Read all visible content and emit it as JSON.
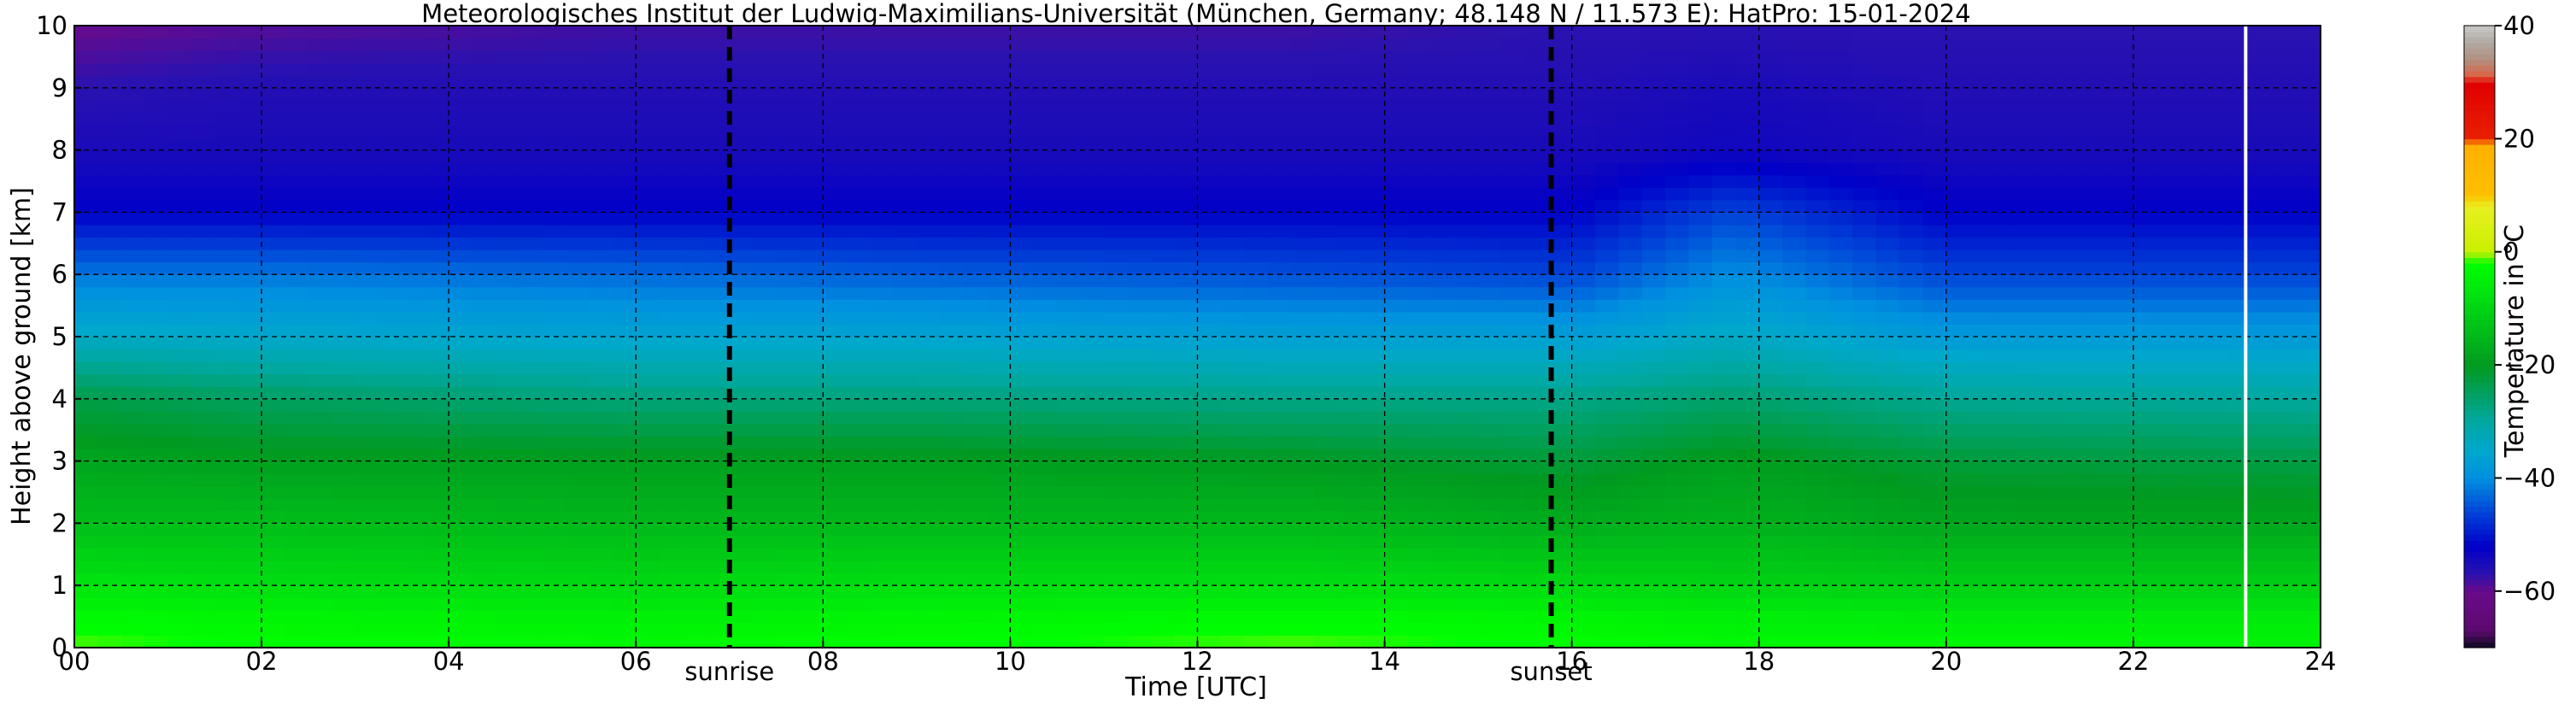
{
  "chart_data": {
    "type": "heatmap",
    "title": "Meteorologisches Institut der Ludwig-Maximilians-Universität (München, Germany; 48.148 N / 11.573 E):    HatPro: 15-01-2024",
    "xlabel": "Time [UTC]",
    "ylabel": "Height above ground [km]",
    "colorbar_label": "Temperature in °C",
    "xlim": [
      0,
      24
    ],
    "ylim": [
      0,
      10
    ],
    "x_ticks": [
      {
        "value": 0,
        "label": "00"
      },
      {
        "value": 2,
        "label": "02"
      },
      {
        "value": 4,
        "label": "04"
      },
      {
        "value": 6,
        "label": "06"
      },
      {
        "value": 8,
        "label": "08"
      },
      {
        "value": 10,
        "label": "10"
      },
      {
        "value": 12,
        "label": "12"
      },
      {
        "value": 14,
        "label": "14"
      },
      {
        "value": 16,
        "label": "16"
      },
      {
        "value": 18,
        "label": "18"
      },
      {
        "value": 20,
        "label": "20"
      },
      {
        "value": 22,
        "label": "22"
      },
      {
        "value": 24,
        "label": "24"
      }
    ],
    "y_ticks": [
      {
        "value": 0,
        "label": "0"
      },
      {
        "value": 1,
        "label": "1"
      },
      {
        "value": 2,
        "label": "2"
      },
      {
        "value": 3,
        "label": "3"
      },
      {
        "value": 4,
        "label": "4"
      },
      {
        "value": 5,
        "label": "5"
      },
      {
        "value": 6,
        "label": "6"
      },
      {
        "value": 7,
        "label": "7"
      },
      {
        "value": 8,
        "label": "8"
      },
      {
        "value": 9,
        "label": "9"
      },
      {
        "value": 10,
        "label": "10"
      }
    ],
    "grid": true,
    "events": [
      {
        "label": "sunrise",
        "time": 7.0
      },
      {
        "label": "sunset",
        "time": 15.78
      }
    ],
    "data_gap_time": 23.2,
    "colorbar": {
      "range": [
        -70,
        40
      ],
      "ticks": [
        {
          "value": 40,
          "label": "40"
        },
        {
          "value": 20,
          "label": "20"
        },
        {
          "value": 0,
          "label": "0"
        },
        {
          "value": -20,
          "label": "−20"
        },
        {
          "value": -40,
          "label": "−40"
        },
        {
          "value": -60,
          "label": "−60"
        }
      ],
      "stops": [
        {
          "t": -70,
          "color": "#0a0a1e"
        },
        {
          "t": -67,
          "color": "#5c0a6e"
        },
        {
          "t": -60,
          "color": "#6a0a8a"
        },
        {
          "t": -57,
          "color": "#2a12b0"
        },
        {
          "t": -52,
          "color": "#0000c8"
        },
        {
          "t": -46,
          "color": "#0044d8"
        },
        {
          "t": -40,
          "color": "#0090e0"
        },
        {
          "t": -35,
          "color": "#00a8cc"
        },
        {
          "t": -30,
          "color": "#00a8a0"
        },
        {
          "t": -25,
          "color": "#00a060"
        },
        {
          "t": -20,
          "color": "#009a20"
        },
        {
          "t": -15,
          "color": "#00b81a"
        },
        {
          "t": -8,
          "color": "#00e010"
        },
        {
          "t": -2,
          "color": "#00ff00"
        },
        {
          "t": 0,
          "color": "#c8f000"
        },
        {
          "t": 8,
          "color": "#e8f020"
        },
        {
          "t": 10,
          "color": "#ffc000"
        },
        {
          "t": 19,
          "color": "#ffb000"
        },
        {
          "t": 20,
          "color": "#e82000"
        },
        {
          "t": 30,
          "color": "#e00000"
        },
        {
          "t": 31,
          "color": "#e06040"
        },
        {
          "t": 34,
          "color": "#b09080"
        },
        {
          "t": 37,
          "color": "#b0a8a0"
        },
        {
          "t": 40,
          "color": "#c8c8c8"
        }
      ]
    },
    "series": [
      {
        "x": 0,
        "heights": [
          0,
          0.5,
          1,
          2,
          3,
          4,
          5,
          6,
          7,
          8,
          9,
          10
        ],
        "temperatures": [
          -1,
          -3,
          -7,
          -14,
          -18,
          -23,
          -34,
          -42,
          -52,
          -55,
          -57,
          -60
        ]
      },
      {
        "x": 2,
        "heights": [
          0,
          0.5,
          1,
          2,
          3,
          4,
          5,
          6,
          7,
          8,
          9,
          10
        ],
        "temperatures": [
          -2,
          -4,
          -8,
          -14,
          -19,
          -25,
          -35,
          -42,
          -52,
          -55,
          -56,
          -59
        ]
      },
      {
        "x": 6,
        "heights": [
          0,
          0.5,
          1,
          2,
          3,
          4,
          5,
          6,
          7,
          8,
          9,
          10
        ],
        "temperatures": [
          -3,
          -5,
          -9,
          -15,
          -19,
          -27,
          -36,
          -43,
          -52,
          -55,
          -56,
          -58
        ]
      },
      {
        "x": 9,
        "heights": [
          0,
          0.5,
          1,
          2,
          3,
          4,
          5,
          6,
          7,
          8,
          9,
          10
        ],
        "temperatures": [
          -2,
          -4,
          -8,
          -15,
          -19,
          -27,
          -36,
          -44,
          -52,
          -55,
          -56,
          -58
        ]
      },
      {
        "x": 13,
        "heights": [
          0,
          0.5,
          1,
          2,
          3,
          4,
          5,
          6,
          7,
          8,
          9,
          10
        ],
        "temperatures": [
          -1,
          -3,
          -8,
          -15,
          -20,
          -28,
          -37,
          -45,
          -52,
          -55,
          -56,
          -58
        ]
      },
      {
        "x": 16,
        "heights": [
          0,
          0.5,
          1,
          2,
          3,
          4,
          5,
          6,
          7,
          8,
          9,
          10
        ],
        "temperatures": [
          -2,
          -4,
          -9,
          -17,
          -22,
          -28,
          -37,
          -46,
          -52,
          -55,
          -56,
          -57
        ]
      },
      {
        "x": 17.7,
        "heights": [
          0,
          0.5,
          1,
          2,
          3,
          4,
          5,
          6,
          7,
          8,
          9,
          10
        ],
        "temperatures": [
          -3,
          -5,
          -10,
          -16,
          -19,
          -26,
          -34,
          -40,
          -46,
          -54,
          -55,
          -57
        ]
      },
      {
        "x": 20,
        "heights": [
          0,
          0.5,
          1,
          2,
          3,
          4,
          5,
          6,
          7,
          8,
          9,
          10
        ],
        "temperatures": [
          -3,
          -6,
          -11,
          -18,
          -22,
          -29,
          -38,
          -46,
          -52,
          -55,
          -56,
          -57
        ]
      },
      {
        "x": 24,
        "heights": [
          0,
          0.5,
          1,
          2,
          3,
          4,
          5,
          6,
          7,
          8,
          9,
          10
        ],
        "temperatures": [
          -4,
          -6,
          -11,
          -18,
          -23,
          -30,
          -38,
          -46,
          -52,
          -55,
          -56,
          -57
        ]
      }
    ]
  }
}
